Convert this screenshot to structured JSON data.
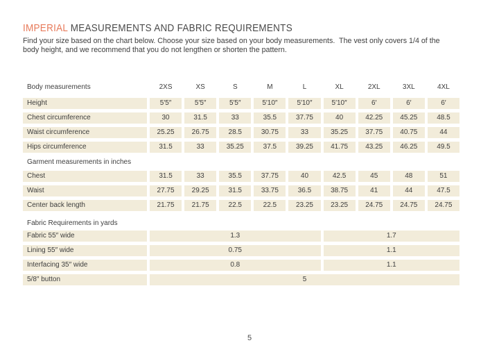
{
  "title": {
    "highlight": "IMPERIAL",
    "rest": " MEASUREMENTS AND FABRIC REQUIREMENTS"
  },
  "intro": "Find your size based on the chart below. Choose your size based on your body measurements.  The vest only covers 1/4 of the\nbody height, and we recommend that you do not lengthen or shorten the pattern.",
  "page_number": "5",
  "colors": {
    "accent": "#E77A5A",
    "cell_bg": "#F2ECDA",
    "text": "#3E3E3E"
  },
  "table": {
    "header": {
      "label": "Body measurements",
      "sizes": [
        "2XS",
        "XS",
        "S",
        "M",
        "L",
        "XL",
        "2XL",
        "3XL",
        "4XL"
      ]
    },
    "body_rows": [
      {
        "label": "Height",
        "values": [
          "5′5″",
          "5′5″",
          "5′5″",
          "5′10″",
          "5′10″",
          "5′10″",
          "6′",
          "6′",
          "6′"
        ]
      },
      {
        "label": "Chest circumference",
        "values": [
          "30",
          "31.5",
          "33",
          "35.5",
          "37.75",
          "40",
          "42.25",
          "45.25",
          "48.5"
        ]
      },
      {
        "label": "Waist circumference",
        "values": [
          "25.25",
          "26.75",
          "28.5",
          "30.75",
          "33",
          "35.25",
          "37.75",
          "40.75",
          "44"
        ]
      },
      {
        "label": "Hips circumference",
        "values": [
          "31.5",
          "33",
          "35.25",
          "37.5",
          "39.25",
          "41.75",
          "43.25",
          "46.25",
          "49.5"
        ]
      }
    ],
    "garment_section": {
      "label": "Garment measurements in inches",
      "rows": [
        {
          "label": "Chest",
          "values": [
            "31.5",
            "33",
            "35.5",
            "37.75",
            "40",
            "42.5",
            "45",
            "48",
            "51"
          ]
        },
        {
          "label": "Waist",
          "values": [
            "27.75",
            "29.25",
            "31.5",
            "33.75",
            "36.5",
            "38.75",
            "41",
            "44",
            "47.5"
          ]
        },
        {
          "label": "Center back length",
          "values": [
            "21.75",
            "21.75",
            "22.5",
            "22.5",
            "23.25",
            "23.25",
            "24.75",
            "24.75",
            "24.75"
          ]
        }
      ]
    },
    "fabric_section": {
      "label": "Fabric Requirements in yards",
      "rows": [
        {
          "label": "Fabric 55″ wide",
          "values": [
            "1.3",
            "1.7"
          ]
        },
        {
          "label": "Lining 55″ wide",
          "values": [
            "0.75",
            "1.1"
          ]
        },
        {
          "label": "Interfacing 35″ wide",
          "values": [
            "0.8",
            "1.1"
          ]
        }
      ],
      "button_row": {
        "label": "5/8″ button",
        "value": "5"
      }
    }
  }
}
